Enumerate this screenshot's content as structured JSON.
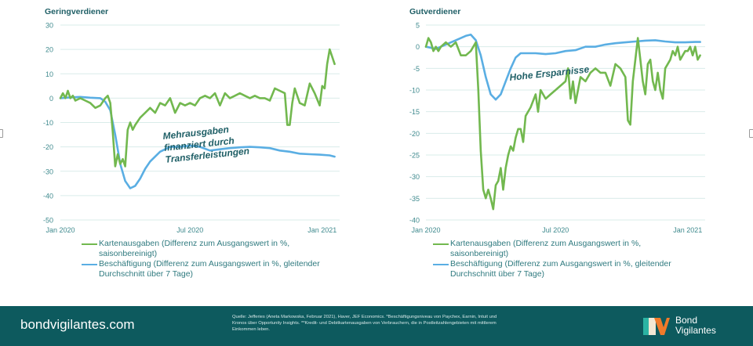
{
  "chart_data": [
    {
      "type": "line",
      "title": "Geringverdiener",
      "xlabel": "",
      "ylabel": "",
      "x_tick_labels": [
        "Jan 2020",
        "Jul 2020",
        "Jan 2021"
      ],
      "ylim": [
        -50,
        30
      ],
      "y_ticks": [
        30,
        20,
        10,
        0,
        -10,
        -20,
        -30,
        -40,
        -50
      ],
      "x_unit": "weeks since Jan 2020",
      "xlim": [
        0,
        56
      ],
      "grid": true,
      "annotation": [
        "Mehrausgaben",
        "finanziert durch",
        "Transferleistungen"
      ],
      "series": [
        {
          "name": "Kartenausgaben (Differenz zum Ausgangswert in %, saisonbereinigt)",
          "color": "#72b84f",
          "x": [
            0,
            0.5,
            1,
            1.5,
            2,
            2.5,
            3,
            4,
            5,
            6,
            7,
            8,
            9,
            9.5,
            10,
            10.5,
            11,
            11.5,
            12,
            12.5,
            13,
            13.5,
            14,
            14.5,
            15,
            16,
            17,
            18,
            19,
            20,
            21,
            22,
            23,
            24,
            25,
            26,
            27,
            28,
            29,
            30,
            31,
            32,
            33,
            34,
            35,
            36,
            37,
            38,
            39,
            40,
            41,
            42,
            43,
            44,
            45,
            45.5,
            46,
            46.5,
            47,
            48,
            49,
            50,
            51,
            52,
            52.5,
            53,
            53.5,
            54,
            54.5,
            55
          ],
          "y": [
            0,
            2,
            0,
            3,
            0,
            1,
            -1,
            0,
            -1,
            -2,
            -4,
            -3,
            0,
            1,
            -2,
            -14,
            -28,
            -23,
            -27,
            -25,
            -28,
            -13,
            -10,
            -13,
            -11,
            -8,
            -6,
            -4,
            -6,
            -2,
            -3,
            0,
            -6,
            -2,
            -3,
            -2,
            -3,
            0,
            1,
            0,
            2,
            -3,
            2,
            0,
            1,
            2,
            1,
            0,
            1,
            0,
            0,
            -1,
            4,
            3,
            2,
            -11,
            -11,
            -2,
            4,
            -2,
            -3,
            6,
            2,
            -3,
            5,
            4,
            14,
            20,
            17,
            14
          ]
        },
        {
          "name": "Beschäftigung (Differenz zum Ausgangswert in %, gleitender Durchschnitt über 7 Tage)",
          "color": "#5aaee3",
          "x": [
            0,
            2,
            4,
            6,
            8,
            9,
            10,
            11,
            12,
            13,
            14,
            15,
            16,
            17,
            18,
            20,
            22,
            24,
            26,
            28,
            30,
            32,
            34,
            36,
            38,
            40,
            42,
            44,
            46,
            48,
            50,
            52,
            54,
            55
          ],
          "y": [
            0,
            0.3,
            0.5,
            0.2,
            0,
            -1.5,
            -5,
            -15,
            -27,
            -34,
            -37,
            -36,
            -33,
            -29,
            -26,
            -22,
            -20,
            -20,
            -19.5,
            -20,
            -21.5,
            -21,
            -20.5,
            -20.2,
            -20,
            -20.2,
            -20.5,
            -21.5,
            -22,
            -22.8,
            -23,
            -23.2,
            -23.5,
            -24
          ]
        }
      ]
    },
    {
      "type": "line",
      "title": "Gutverdiener",
      "xlabel": "",
      "ylabel": "",
      "x_tick_labels": [
        "Jan 2020",
        "Jul 2020",
        "Jan 2021"
      ],
      "ylim": [
        -40,
        5
      ],
      "y_ticks": [
        5,
        0,
        -5,
        -10,
        -15,
        -20,
        -25,
        -30,
        -35,
        -40
      ],
      "x_unit": "weeks since Jan 2020",
      "xlim": [
        0,
        56
      ],
      "grid": true,
      "annotation": [
        "Hohe Ersparnisse"
      ],
      "series": [
        {
          "name": "Kartenausgaben (Differenz zum Ausgangswert in %, saisonbereinigt)",
          "color": "#72b84f",
          "x": [
            0,
            0.5,
            1,
            1.5,
            2,
            2.5,
            3,
            4,
            5,
            6,
            7,
            8,
            9,
            10,
            10.5,
            11,
            11.5,
            12,
            12.5,
            13,
            13.5,
            14,
            14.5,
            15,
            15.5,
            16,
            16.5,
            17,
            17.5,
            18,
            18.5,
            19,
            19.5,
            20,
            21,
            22,
            22.5,
            23,
            24,
            25,
            26,
            27,
            28,
            28.5,
            29,
            29.5,
            30,
            31,
            32,
            33,
            34,
            35,
            36,
            37,
            38,
            39,
            40,
            40.5,
            41,
            41.5,
            42,
            42.5,
            43,
            43.5,
            44,
            44.5,
            45,
            45.5,
            46,
            46.5,
            47,
            47.5,
            48,
            48.5,
            49,
            49.5,
            50,
            50.5,
            51,
            51.5,
            52,
            52.5,
            53,
            53.5,
            54,
            54.5,
            55
          ],
          "y": [
            0,
            2,
            1,
            -1,
            0,
            -1,
            0,
            1,
            0,
            1,
            -2,
            -2,
            -1,
            1,
            -10,
            -24,
            -33,
            -35,
            -33,
            -35,
            -37.5,
            -32,
            -31,
            -28,
            -33,
            -28,
            -25,
            -23,
            -24,
            -21,
            -19,
            -19,
            -22,
            -16,
            -14,
            -11,
            -15,
            -10,
            -12,
            -11,
            -10,
            -9,
            -8,
            -5,
            -12,
            -8,
            -13,
            -7,
            -8,
            -6,
            -5,
            -6,
            -6,
            -9,
            -4,
            -5,
            -7,
            -17,
            -18,
            -8,
            -3,
            2,
            -3,
            -8,
            -11,
            -4,
            -3,
            -8,
            -10,
            -6,
            -10,
            -12,
            -5,
            -4,
            -3,
            -1,
            -2,
            0,
            -3,
            -2,
            -1,
            -1,
            0,
            -2,
            0,
            -3,
            -2
          ],
          "y_note": "approximate trace"
        },
        {
          "name": "Beschäftigung (Differenz zum Ausgangswert in %, gleitender Durchschnitt über 7 Tage)",
          "color": "#5aaee3",
          "x": [
            0,
            2,
            4,
            6,
            8,
            9,
            10,
            11,
            12,
            13,
            14,
            15,
            16,
            17,
            18,
            19,
            20,
            22,
            24,
            26,
            28,
            30,
            32,
            34,
            36,
            38,
            40,
            42,
            44,
            46,
            48,
            50,
            52,
            54,
            55
          ],
          "y": [
            0,
            -0.5,
            0.5,
            1.5,
            2.5,
            2.8,
            1.5,
            -2,
            -7,
            -11,
            -12.2,
            -11,
            -8,
            -5,
            -2.5,
            -1.5,
            -1.5,
            -1.5,
            -1.7,
            -1.5,
            -1,
            -0.8,
            0,
            0,
            0.5,
            0.8,
            1,
            1.2,
            1.4,
            1.5,
            1.2,
            1,
            1,
            1.1,
            1.1
          ]
        }
      ]
    }
  ],
  "legend": {
    "spending_line1": "Kartenausgaben (Differenz zum Ausgangswert in %,",
    "spending_line2": "saisonbereinigt)",
    "employment_line1": "Beschäftigung (Differenz zum Ausgangswert in %, gleitender",
    "employment_line2": "Durchschnitt über 7 Tage)"
  },
  "footer": {
    "site": "bondvigilantes.com",
    "source_line1": "Quelle: Jefferies (Aneta Markowska, Februar 2021), Haver, JEF Economics. *Beschäftigungsniveau von Paychex, Earnin, Intuit und",
    "source_line2": "Kronos über Opportunity Insights.  **Kredit- und Debitkartenausgaben von Verbrauchern, die in Postleitzahlengebieten mit mittlerem",
    "source_line3": "Einkommen leben.",
    "logo_line1": "Bond",
    "logo_line2": "Vigilantes"
  },
  "colors": {
    "footer_bg": "#0d5a5e",
    "axis_text": "#3f8a8e",
    "grid": "#d9ecea",
    "annotation": "#1f5f66"
  }
}
